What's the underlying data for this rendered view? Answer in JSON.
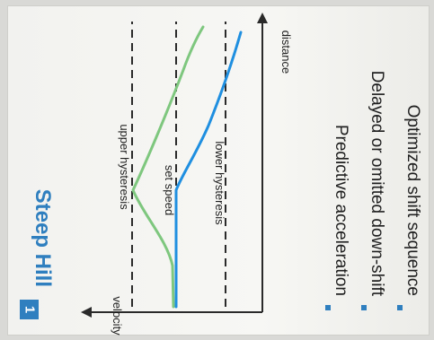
{
  "panel": {
    "number": "1",
    "title": "Steep Hill",
    "accent_color": "#2f7fbf"
  },
  "diagram": {
    "y_axis_label": "velocity",
    "x_axis_label": "distance",
    "upper_hysteresis_label": "upper hysteresis",
    "set_speed_label": "set speed",
    "lower_hysteresis_label": "lower hysteresis",
    "green_curve_color": "#7ec77e",
    "blue_curve_color": "#1f8fe0"
  },
  "bullets": [
    {
      "text": "Predictive acceleration"
    },
    {
      "text": "Delayed or omitted down-shift"
    },
    {
      "text": "Optimized shift sequence"
    }
  ]
}
